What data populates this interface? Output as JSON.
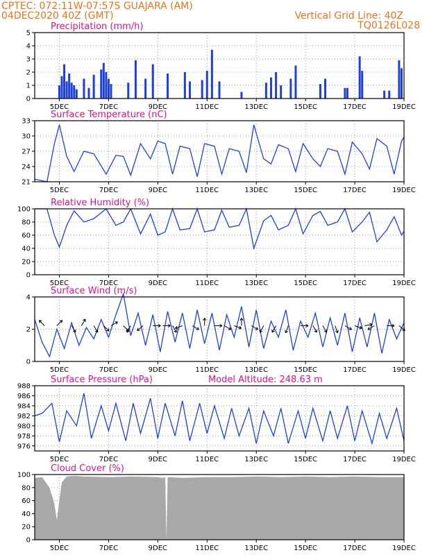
{
  "header": {
    "line1": "CPTEC:   072:11W-07:57S   GUAJARA (AM)",
    "line2": "04DEC2020 40Z (GMT)",
    "right1": "Vertical Grid Line: 40Z",
    "right2": "TQ0126L028"
  },
  "x_labels": [
    "5DEC",
    "7DEC",
    "9DEC",
    "11DEC",
    "13DEC",
    "15DEC",
    "17DEC",
    "19DEC"
  ],
  "colors": {
    "line": "#1f3fdc",
    "bar": "#1f3fdc",
    "cloud": "#a8a8a8",
    "title": "#e0108c",
    "header": "#e8731a"
  },
  "chart_data": [
    {
      "type": "bar",
      "title": "Precipitation (mm/h)",
      "ylim": [
        0,
        5
      ],
      "yticks": [
        0,
        1,
        2,
        3,
        4,
        5
      ],
      "x_range_days": [
        4,
        19
      ],
      "series": [
        {
          "values_note": "hourly bars",
          "x": [
            5.0,
            5.1,
            5.2,
            5.3,
            5.4,
            5.5,
            5.6,
            5.7,
            6.0,
            6.2,
            6.4,
            6.7,
            6.8,
            6.9,
            7.0,
            7.1,
            7.8,
            8.1,
            8.5,
            8.8,
            9.4,
            10.1,
            10.3,
            10.8,
            11.0,
            11.2,
            11.5,
            12.4,
            13.4,
            13.6,
            13.8,
            14.0,
            14.4,
            14.6,
            15.6,
            15.8,
            16.6,
            16.7,
            17.2,
            17.3,
            18.2,
            18.4,
            18.8,
            18.9
          ],
          "y": [
            1.0,
            1.7,
            2.6,
            1.3,
            1.9,
            1.2,
            1.0,
            0.7,
            1.5,
            0.8,
            1.8,
            2.2,
            2.7,
            2.0,
            1.5,
            1.1,
            1.2,
            2.9,
            1.5,
            2.6,
            1.9,
            2.0,
            1.3,
            1.4,
            2.1,
            3.7,
            1.3,
            0.5,
            1.2,
            1.6,
            2.0,
            1.0,
            1.5,
            2.5,
            1.1,
            1.5,
            0.8,
            0.8,
            3.2,
            2.1,
            0.6,
            0.6,
            2.9,
            2.3
          ]
        }
      ]
    },
    {
      "type": "line",
      "title": "Surface Temperature (nC)",
      "ylim": [
        21,
        33
      ],
      "yticks": [
        21,
        24,
        27,
        30,
        33
      ],
      "x": [
        4.0,
        4.5,
        4.8,
        5.0,
        5.3,
        5.6,
        6.0,
        6.4,
        6.9,
        7.3,
        7.6,
        7.9,
        8.3,
        8.7,
        9.0,
        9.3,
        9.6,
        9.9,
        10.3,
        10.6,
        10.9,
        11.3,
        11.6,
        11.9,
        12.3,
        12.6,
        12.9,
        13.3,
        13.6,
        13.9,
        14.3,
        14.6,
        14.9,
        15.3,
        15.6,
        15.9,
        16.3,
        16.6,
        16.9,
        17.3,
        17.6,
        17.9,
        18.3,
        18.6,
        18.9,
        19.0
      ],
      "y": [
        21.5,
        21.0,
        28.5,
        32.2,
        26.0,
        23.0,
        27.0,
        26.5,
        22.5,
        26.2,
        26.0,
        22.3,
        28.5,
        25.5,
        29.0,
        28.5,
        22.5,
        28.0,
        27.5,
        22.0,
        28.5,
        28.0,
        22.5,
        27.5,
        27.0,
        22.8,
        32.2,
        25.5,
        24.5,
        28.3,
        27.5,
        23.0,
        28.5,
        25.5,
        24.0,
        27.5,
        27.0,
        22.5,
        28.8,
        26.5,
        23.5,
        29.5,
        28.0,
        22.5,
        29.0,
        29.8
      ]
    },
    {
      "type": "line",
      "title": "Relative Humidity (%)",
      "ylim": [
        0,
        100
      ],
      "yticks": [
        0,
        20,
        40,
        60,
        80,
        100
      ],
      "x": [
        4.0,
        4.5,
        4.8,
        5.0,
        5.3,
        5.6,
        6.0,
        6.4,
        6.9,
        7.3,
        7.6,
        7.9,
        8.3,
        8.7,
        9.0,
        9.3,
        9.6,
        9.9,
        10.3,
        10.6,
        10.9,
        11.3,
        11.6,
        11.9,
        12.3,
        12.6,
        12.9,
        13.3,
        13.6,
        13.9,
        14.3,
        14.6,
        14.9,
        15.3,
        15.6,
        15.9,
        16.3,
        16.6,
        16.9,
        17.3,
        17.6,
        17.9,
        18.3,
        18.6,
        18.9,
        19.0
      ],
      "y": [
        100,
        100,
        60,
        42,
        75,
        97,
        80,
        85,
        100,
        75,
        80,
        100,
        62,
        92,
        60,
        65,
        100,
        68,
        70,
        100,
        65,
        68,
        98,
        72,
        75,
        100,
        40,
        82,
        90,
        68,
        75,
        100,
        62,
        90,
        96,
        75,
        80,
        100,
        65,
        80,
        95,
        50,
        68,
        88,
        60,
        66
      ]
    },
    {
      "type": "line",
      "title": "Surface Wind (m/s)",
      "ylim": [
        0,
        4
      ],
      "yticks": [
        0,
        2,
        4
      ],
      "x": [
        4.0,
        4.3,
        4.6,
        4.9,
        5.2,
        5.5,
        5.8,
        6.1,
        6.4,
        6.7,
        7.0,
        7.3,
        7.6,
        7.9,
        8.2,
        8.5,
        8.8,
        9.1,
        9.4,
        9.7,
        10.0,
        10.3,
        10.6,
        10.9,
        11.2,
        11.5,
        11.8,
        12.1,
        12.4,
        12.7,
        13.0,
        13.3,
        13.6,
        13.9,
        14.2,
        14.5,
        14.8,
        15.1,
        15.4,
        15.7,
        16.0,
        16.3,
        16.6,
        16.9,
        17.2,
        17.5,
        17.8,
        18.1,
        18.4,
        18.7,
        19.0
      ],
      "y": [
        2.6,
        1.2,
        0.3,
        2.0,
        0.8,
        2.4,
        1.0,
        2.1,
        1.4,
        2.6,
        1.5,
        2.9,
        4.2,
        1.6,
        3.0,
        1.0,
        2.9,
        0.6,
        3.1,
        1.2,
        3.0,
        0.8,
        3.2,
        1.1,
        3.0,
        0.7,
        2.9,
        1.5,
        3.4,
        0.9,
        3.2,
        0.8,
        2.5,
        1.5,
        3.2,
        0.7,
        2.5,
        1.5,
        3.0,
        0.9,
        2.7,
        1.0,
        3.0,
        0.6,
        2.7,
        0.9,
        3.0,
        0.5,
        2.6,
        1.4,
        2.4
      ]
    },
    {
      "type": "line",
      "title": "Surface Pressure (hPa)",
      "annotation": "Model Altitude: 248.63 m",
      "ylim": [
        975,
        988
      ],
      "yticks": [
        976,
        978,
        980,
        982,
        984,
        986,
        988
      ],
      "x": [
        4.0,
        4.3,
        4.7,
        5.0,
        5.3,
        5.7,
        6.0,
        6.3,
        6.7,
        7.0,
        7.3,
        7.7,
        8.0,
        8.3,
        8.7,
        9.0,
        9.3,
        9.7,
        10.0,
        10.3,
        10.7,
        11.0,
        11.3,
        11.7,
        12.0,
        12.3,
        12.7,
        13.0,
        13.3,
        13.7,
        14.0,
        14.3,
        14.7,
        15.0,
        15.3,
        15.7,
        16.0,
        16.3,
        16.7,
        17.0,
        17.3,
        17.7,
        18.0,
        18.3,
        18.7,
        19.0
      ],
      "y": [
        982.0,
        982.5,
        984.5,
        976.8,
        983.0,
        980.0,
        986.5,
        977.5,
        984.0,
        979.0,
        984.5,
        977.0,
        984.5,
        978.5,
        985.5,
        977.5,
        984.5,
        978.0,
        985.0,
        977.0,
        984.5,
        978.5,
        984.0,
        977.5,
        983.5,
        978.0,
        983.5,
        976.5,
        983.0,
        978.0,
        983.5,
        976.5,
        983.0,
        977.5,
        983.5,
        977.0,
        983.0,
        977.5,
        984.0,
        977.0,
        983.0,
        976.5,
        982.5,
        977.5,
        983.5,
        977.0
      ]
    },
    {
      "type": "area",
      "title": "Cloud Cover (%)",
      "ylim": [
        0,
        100
      ],
      "yticks": [
        0,
        20,
        40,
        60,
        80,
        100
      ],
      "x": [
        4.0,
        4.3,
        4.6,
        4.8,
        4.9,
        5.0,
        5.1,
        5.3,
        5.6,
        6.0,
        7.0,
        8.0,
        9.0,
        9.2,
        9.3,
        9.35,
        9.4,
        10.0,
        11.0,
        12.0,
        13.0,
        14.0,
        15.0,
        16.0,
        17.0,
        18.0,
        19.0
      ],
      "y": [
        95,
        96,
        80,
        55,
        30,
        60,
        88,
        97,
        98,
        97,
        96,
        97,
        96,
        95,
        96,
        0,
        96,
        95,
        96,
        96,
        97,
        96,
        97,
        96,
        97,
        96,
        96
      ]
    }
  ]
}
